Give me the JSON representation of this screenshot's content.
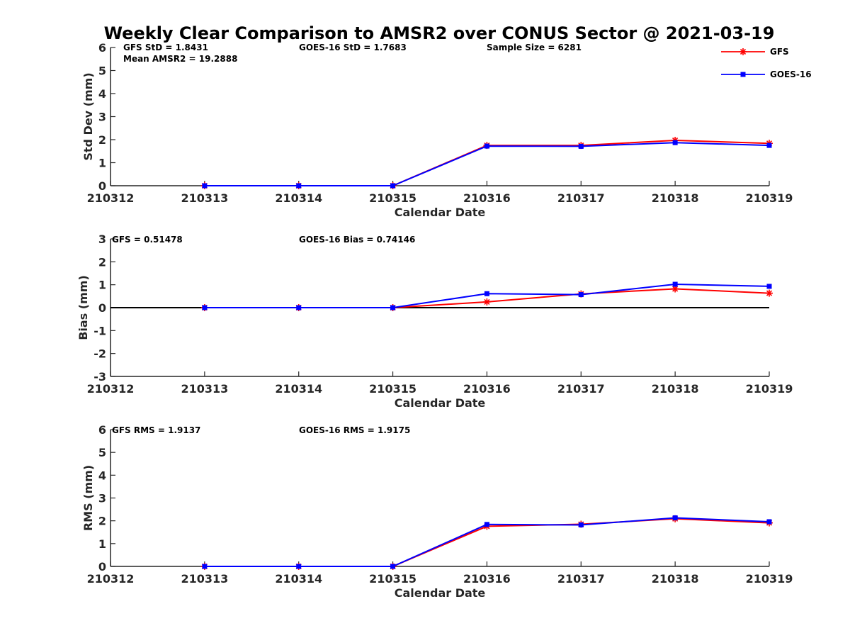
{
  "chart_data": {
    "title": "Weekly Clear Comparison to AMSR2 over CONUS Sector @ 2021-03-19",
    "legend": {
      "placement": "top-right",
      "entries": [
        {
          "name": "GFS",
          "color": "#ff0000",
          "marker": "asterisk"
        },
        {
          "name": "GOES-16",
          "color": "#0000ff",
          "marker": "square"
        }
      ]
    },
    "panels": [
      {
        "type": "line",
        "ylabel": "Std Dev (mm)",
        "xlabel": "Calendar Date",
        "ylim": [
          0,
          6
        ],
        "yticks": [
          "0",
          "1",
          "2",
          "3",
          "4",
          "5",
          "6"
        ],
        "x_categories": [
          "210312",
          "210313",
          "210314",
          "210315",
          "210316",
          "210317",
          "210318",
          "210319"
        ],
        "zero_line": false,
        "annotations": [
          "GFS StD = 1.8431",
          "Mean AMSR2 = 19.2888",
          "GOES-16 StD = 1.7683",
          "Sample Size = 6281"
        ],
        "series": [
          {
            "name": "GFS",
            "color": "#ff0000",
            "marker": "asterisk",
            "x": [
              "210313",
              "210314",
              "210315",
              "210316",
              "210317",
              "210318",
              "210319"
            ],
            "values": [
              0,
              0,
              0,
              1.75,
              1.75,
              1.97,
              1.84
            ]
          },
          {
            "name": "GOES-16",
            "color": "#0000ff",
            "marker": "square",
            "x": [
              "210313",
              "210314",
              "210315",
              "210316",
              "210317",
              "210318",
              "210319"
            ],
            "values": [
              0,
              0,
              0,
              1.72,
              1.71,
              1.87,
              1.75
            ]
          }
        ]
      },
      {
        "type": "line",
        "ylabel": "Bias (mm)",
        "xlabel": "Calendar Date",
        "ylim": [
          -3,
          3
        ],
        "yticks": [
          "-3",
          "-2",
          "-1",
          "0",
          "1",
          "2",
          "3"
        ],
        "x_categories": [
          "210312",
          "210313",
          "210314",
          "210315",
          "210316",
          "210317",
          "210318",
          "210319"
        ],
        "zero_line": true,
        "annotations": [
          "GFS = 0.51478",
          "GOES-16 Bias  = 0.74146"
        ],
        "series": [
          {
            "name": "GFS",
            "color": "#ff0000",
            "marker": "asterisk",
            "x": [
              "210313",
              "210314",
              "210315",
              "210316",
              "210317",
              "210318",
              "210319"
            ],
            "values": [
              0,
              0,
              0,
              0.25,
              0.6,
              0.82,
              0.63
            ]
          },
          {
            "name": "GOES-16",
            "color": "#0000ff",
            "marker": "square",
            "x": [
              "210313",
              "210314",
              "210315",
              "210316",
              "210317",
              "210318",
              "210319"
            ],
            "values": [
              0,
              0,
              0,
              0.61,
              0.57,
              1.02,
              0.93
            ]
          }
        ]
      },
      {
        "type": "line",
        "ylabel": "RMS (mm)",
        "xlabel": "Calendar Date",
        "ylim": [
          0,
          6
        ],
        "yticks": [
          "0",
          "1",
          "2",
          "3",
          "4",
          "5",
          "6"
        ],
        "x_categories": [
          "210312",
          "210313",
          "210314",
          "210315",
          "210316",
          "210317",
          "210318",
          "210319"
        ],
        "zero_line": false,
        "annotations": [
          "GFS RMS = 1.9137",
          "GOES-16 RMS = 1.9175"
        ],
        "series": [
          {
            "name": "GFS",
            "color": "#ff0000",
            "marker": "asterisk",
            "x": [
              "210313",
              "210314",
              "210315",
              "210316",
              "210317",
              "210318",
              "210319"
            ],
            "values": [
              0,
              0,
              0,
              1.76,
              1.85,
              2.09,
              1.91
            ]
          },
          {
            "name": "GOES-16",
            "color": "#0000ff",
            "marker": "square",
            "x": [
              "210313",
              "210314",
              "210315",
              "210316",
              "210317",
              "210318",
              "210319"
            ],
            "values": [
              0,
              0,
              0,
              1.84,
              1.82,
              2.13,
              1.96
            ]
          }
        ]
      }
    ]
  }
}
